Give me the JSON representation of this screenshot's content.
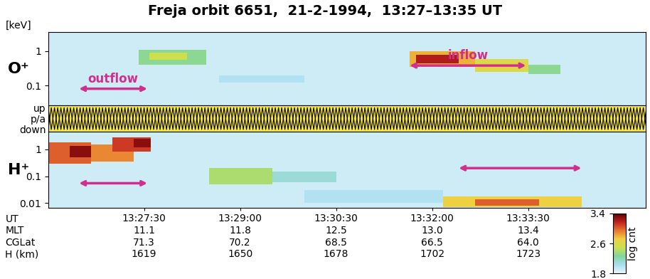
{
  "chart_data": {
    "type": "spectrogram",
    "title": "Freja orbit 6651,  21-2-1994,  13:27–13:35 UT",
    "energy_unit": "[keV]",
    "xlim": [
      48360,
      48920
    ],
    "xticks": [
      {
        "value": 48450,
        "label": "13:27:30"
      },
      {
        "value": 48540,
        "label": "13:29:00"
      },
      {
        "value": 48630,
        "label": "13:30:30"
      },
      {
        "value": 48720,
        "label": "13:32:00"
      },
      {
        "value": 48810,
        "label": "13:33:30"
      }
    ],
    "ephemeris": [
      {
        "name": "UT",
        "values": [
          "13:27:30",
          "13:29:00",
          "13:30:30",
          "13:32:00",
          "13:33:30"
        ]
      },
      {
        "name": "MLT",
        "values": [
          11.1,
          11.8,
          12.5,
          13.0,
          13.4
        ]
      },
      {
        "name": "CGLat",
        "values": [
          71.3,
          70.2,
          68.5,
          66.5,
          64.0
        ]
      },
      {
        "name": "H (km)",
        "values": [
          1619,
          1650,
          1678,
          1702,
          1723
        ]
      }
    ],
    "log": "y",
    "background_log_cnt": 1.9,
    "panels": [
      {
        "name": "O⁺",
        "ylim": [
          0.026,
          3.6
        ],
        "yticks": [
          1,
          0.1
        ],
        "cells": [
          {
            "t": [
              48445,
              48508
            ],
            "e": [
              0.4,
              1.1
            ],
            "log_cnt": 2.3
          },
          {
            "t": [
              48455,
              48490
            ],
            "e": [
              0.55,
              0.9
            ],
            "log_cnt": 2.5
          },
          {
            "t": [
              48520,
              48600
            ],
            "e": [
              0.12,
              0.2
            ],
            "log_cnt": 2.0
          },
          {
            "t": [
              48699,
              48760
            ],
            "e": [
              0.35,
              1.0
            ],
            "log_cnt": 2.8
          },
          {
            "t": [
              48705,
              48745
            ],
            "e": [
              0.45,
              0.8
            ],
            "log_cnt": 3.2
          },
          {
            "t": [
              48760,
              48810
            ],
            "e": [
              0.25,
              0.6
            ],
            "log_cnt": 2.6
          },
          {
            "t": [
              48810,
              48840
            ],
            "e": [
              0.22,
              0.4
            ],
            "log_cnt": 2.3
          }
        ],
        "annotations": [
          {
            "text": "outflow",
            "t": [
              48389,
              48453
            ],
            "e": 0.08
          },
          {
            "text": "inflow",
            "t": [
              48699,
              48808
            ],
            "e": 0.38
          }
        ]
      },
      {
        "name": "H⁺",
        "ylim": [
          0.0067,
          4.5
        ],
        "yticks": [
          1,
          0.1,
          0.01
        ],
        "cells": [
          {
            "t": [
              48360,
              48400
            ],
            "e": [
              0.3,
              1.8
            ],
            "log_cnt": 3.0
          },
          {
            "t": [
              48380,
              48410
            ],
            "e": [
              0.5,
              1.3
            ],
            "log_cnt": 3.3
          },
          {
            "t": [
              48400,
              48440
            ],
            "e": [
              0.35,
              1.5
            ],
            "log_cnt": 2.9
          },
          {
            "t": [
              48420,
              48456
            ],
            "e": [
              0.8,
              2.8
            ],
            "log_cnt": 3.1
          },
          {
            "t": [
              48440,
              48456
            ],
            "e": [
              1.2,
              2.5
            ],
            "log_cnt": 3.3
          },
          {
            "t": [
              48511,
              48570
            ],
            "e": [
              0.05,
              0.2
            ],
            "log_cnt": 2.4
          },
          {
            "t": [
              48570,
              48630
            ],
            "e": [
              0.06,
              0.15
            ],
            "log_cnt": 2.1
          },
          {
            "t": [
              48600,
              48730
            ],
            "e": [
              0.01,
              0.03
            ],
            "log_cnt": 2.0
          },
          {
            "t": [
              48730,
              48860
            ],
            "e": [
              0.007,
              0.018
            ],
            "log_cnt": 2.7
          },
          {
            "t": [
              48760,
              48820
            ],
            "e": [
              0.008,
              0.014
            ],
            "log_cnt": 3.0
          }
        ],
        "annotations": [
          {
            "t": [
              48389,
              48453
            ],
            "e": 0.055
          },
          {
            "t": [
              48745,
              48860
            ],
            "e": 0.2
          }
        ]
      }
    ],
    "pitch_angle": {
      "color": "#f5e642",
      "ylim": [
        -1.2,
        1.2
      ],
      "yticks": [
        {
          "value": 1,
          "label": "up"
        },
        {
          "value": 0,
          "label": "p/a"
        },
        {
          "value": -1,
          "label": "down"
        }
      ],
      "period_s": 6
    },
    "annotation_color": "#d0308c",
    "colorbar": {
      "label": "log cnt",
      "range": [
        1.8,
        3.4
      ],
      "ticks": [
        1.8,
        2.6,
        3.4
      ],
      "colors": [
        "#e8f6fb",
        "#a8def0",
        "#80d6a0",
        "#c8e050",
        "#f0d040",
        "#e87830",
        "#c02020",
        "#600000"
      ]
    }
  }
}
